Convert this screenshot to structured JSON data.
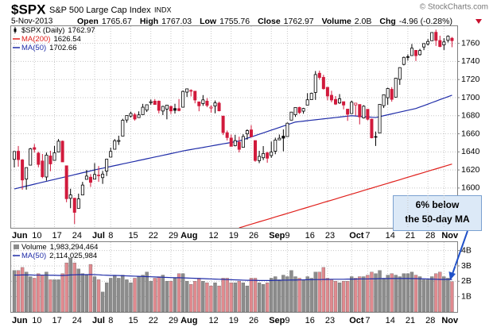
{
  "chart_data": {
    "type": "candlestick",
    "title": "$SPX",
    "subtitle": "S&P 500 Large Cap Index",
    "exchange": "INDX",
    "date": "5-Nov-2013",
    "credit": "© StockCharts.com",
    "quote_labels": [
      "Open",
      "High",
      "Low",
      "Close",
      "Volume",
      "Chg"
    ],
    "volume_text": "2.0B",
    "change": "-4.96 (-0.28%)",
    "price_name": "$SPX (Daily)",
    "annotation": [
      "6% below",
      "the 50-day MA"
    ],
    "up_color": "#000000",
    "down_color": "#d11a3c",
    "grid": true,
    "categories": [
      "Jun",
      null,
      null,
      null,
      null,
      "10",
      null,
      null,
      null,
      null,
      "17",
      null,
      null,
      null,
      null,
      "24",
      null,
      null,
      null,
      null,
      "Jul",
      null,
      null,
      null,
      "8",
      null,
      null,
      null,
      null,
      "15",
      null,
      null,
      null,
      null,
      "22",
      null,
      null,
      null,
      null,
      "29",
      null,
      null,
      "Aug",
      null,
      null,
      null,
      null,
      null,
      null,
      "12",
      null,
      null,
      null,
      null,
      "19",
      null,
      null,
      null,
      null,
      "26",
      null,
      null,
      null,
      null,
      "Sep",
      null,
      null,
      null,
      "9",
      null,
      null,
      null,
      null,
      "16",
      null,
      null,
      null,
      null,
      "23",
      null,
      null,
      null,
      null,
      null,
      "Oct",
      null,
      null,
      null,
      "7",
      null,
      null,
      null,
      null,
      "14",
      null,
      null,
      null,
      null,
      "21",
      null,
      null,
      null,
      null,
      "28",
      null,
      null,
      null,
      "Nov",
      null,
      null
    ],
    "open": [
      1631.7,
      1640.7,
      1631.1,
      1609.9,
      1625.3,
      1644.7,
      1638.6,
      1629.9,
      1612.2,
      1635.5,
      1630.6,
      1639.8,
      1651.8,
      1624.6,
      1588.6,
      1588.8,
      1577.5,
      1592.3,
      1609.6,
      1612.0,
      1609.8,
      1614.3,
      1611.5,
      1618.7,
      1634.2,
      1642.9,
      1651.6,
      1657.4,
      1675.3,
      1679.6,
      1681.0,
      1677.9,
      1681.1,
      1686.2,
      1694.4,
      1696.1,
      1696.1,
      1685.2,
      1687.3,
      1690.3,
      1687.9,
      1687.8,
      1689.4,
      1706.1,
      1708.0,
      1707.1,
      1695.3,
      1693.4,
      1696.1,
      1688.4,
      1690.7,
      1693.9,
      1679.6,
      1661.2,
      1655.3,
      1646.8,
      1650.7,
      1645.0,
      1659.9,
      1664.3,
      1652.5,
      1630.3,
      1633.5,
      1638.9,
      1635.9,
      1640.7,
      1653.3,
      1657.4,
      1656.9,
      1675.1,
      1681.0,
      1689.2,
      1685.0,
      1691.7,
      1697.7,
      1705.7,
      1727.0,
      1722.4,
      1711.4,
      1702.6,
      1698.0,
      1694.1,
      1695.5,
      1687.3,
      1682.4,
      1691.9,
      1692.4,
      1677.5,
      1687.1,
      1676.2,
      1656.9,
      1660.9,
      1691.1,
      1699.9,
      1709.2,
      1700.5,
      1720.2,
      1736.7,
      1745.2,
      1746.5,
      1752.3,
      1747.5,
      1756.0,
      1759.4,
      1762.9,
      1772.3,
      1763.2,
      1758.3,
      1763.4,
      1765.67
    ],
    "high": [
      1640.4,
      1646.5,
      1632.0,
      1622.6,
      1644.4,
      1648.7,
      1640.1,
      1637.7,
      1639.3,
      1641.2,
      1646.5,
      1654.2,
      1652.5,
      1624.6,
      1599.2,
      1588.8,
      1593.8,
      1606.8,
      1620.1,
      1615.4,
      1627.5,
      1624.3,
      1618.9,
      1632.1,
      1644.7,
      1654.2,
      1657.9,
      1676.6,
      1680.2,
      1684.5,
      1683.0,
      1684.8,
      1693.1,
      1692.1,
      1698.0,
      1698.4,
      1696.8,
      1690.9,
      1691.9,
      1690.9,
      1693.2,
      1698.4,
      1707.8,
      1709.7,
      1709.2,
      1707.1,
      1695.3,
      1702.8,
      1699.4,
      1691.5,
      1696.8,
      1695.5,
      1679.6,
      1663.6,
      1659.2,
      1658.9,
      1656.8,
      1659.6,
      1664.9,
      1669.5,
      1652.5,
      1641.2,
      1646.4,
      1640.1,
      1651.4,
      1655.7,
      1659.2,
      1664.8,
      1672.4,
      1684.1,
      1689.1,
      1689.9,
      1688.7,
      1704.9,
      1705.5,
      1729.4,
      1729.9,
      1725.2,
      1711.4,
      1707.6,
      1701.7,
      1703.9,
      1695.5,
      1687.3,
      1696.6,
      1693.9,
      1692.4,
      1691.6,
      1687.1,
      1676.8,
      1662.5,
      1692.6,
      1703.4,
      1711.0,
      1711.6,
      1721.8,
      1733.4,
      1745.3,
      1747.8,
      1759.3,
      1752.3,
      1753.9,
      1759.8,
      1764.8,
      1772.1,
      1775.2,
      1768.5,
      1765.7,
      1768.8,
      1767.03
    ],
    "low": [
      1622.7,
      1623.6,
      1598.2,
      1598.2,
      1625.3,
      1639.3,
      1622.9,
      1610.9,
      1608.1,
      1618.6,
      1630.3,
      1639.8,
      1628.9,
      1584.3,
      1577.7,
      1560.3,
      1577.5,
      1592.3,
      1609.6,
      1601.2,
      1609.8,
      1606.8,
      1604.6,
      1613.3,
      1634.2,
      1642.9,
      1647.7,
      1657.4,
      1672.3,
      1677.9,
      1674.6,
      1677.9,
      1681.1,
      1684.1,
      1692.1,
      1692.4,
      1682.6,
      1680.7,
      1676.0,
      1681.9,
      1682.4,
      1684.9,
      1689.4,
      1700.7,
      1701.3,
      1693.7,
      1684.9,
      1690.9,
      1689.4,
      1683.4,
      1682.6,
      1684.8,
      1658.6,
      1652.6,
      1646.1,
      1646.1,
      1639.4,
      1645.0,
      1653.4,
      1656.0,
      1629.1,
      1627.5,
      1630.9,
      1628.0,
      1633.4,
      1637.4,
      1653.1,
      1640.6,
      1656.9,
      1675.1,
      1678.7,
      1681.9,
      1682.2,
      1691.7,
      1697.7,
      1697.5,
      1719.9,
      1708.9,
      1697.1,
      1694.9,
      1691.9,
      1693.1,
      1687.0,
      1674.3,
      1682.1,
      1680.3,
      1670.4,
      1676.9,
      1674.7,
      1655.0,
      1646.5,
      1660.9,
      1688.5,
      1692.1,
      1695.5,
      1700.5,
      1714.1,
      1735.7,
      1740.9,
      1746.5,
      1740.5,
      1746.5,
      1752.5,
      1757.7,
      1762.9,
      1757.2,
      1755.7,
      1752.7,
      1761.0,
      1755.76
    ],
    "close": [
      1640.4,
      1631.4,
      1608.9,
      1622.6,
      1643.4,
      1642.8,
      1626.1,
      1612.5,
      1636.4,
      1626.7,
      1639.0,
      1651.8,
      1628.9,
      1588.2,
      1592.4,
      1573.1,
      1588.0,
      1603.3,
      1613.2,
      1606.3,
      1615.0,
      1614.1,
      1615.4,
      1631.9,
      1640.5,
      1652.3,
      1652.6,
      1675.0,
      1680.2,
      1682.5,
      1676.3,
      1680.9,
      1689.4,
      1692.1,
      1695.5,
      1692.4,
      1685.9,
      1690.3,
      1691.7,
      1685.3,
      1686.0,
      1685.7,
      1706.9,
      1709.7,
      1707.1,
      1697.4,
      1690.9,
      1697.5,
      1691.4,
      1689.5,
      1694.2,
      1685.4,
      1661.3,
      1655.8,
      1646.1,
      1652.4,
      1642.8,
      1657.0,
      1663.5,
      1656.8,
      1630.5,
      1635.0,
      1638.2,
      1633.0,
      1639.8,
      1653.1,
      1655.1,
      1655.2,
      1671.7,
      1684.0,
      1689.1,
      1683.4,
      1688.0,
      1697.6,
      1704.8,
      1725.5,
      1722.3,
      1709.9,
      1701.8,
      1697.4,
      1692.8,
      1698.7,
      1691.8,
      1681.6,
      1695.0,
      1693.9,
      1678.7,
      1690.5,
      1676.1,
      1655.5,
      1656.4,
      1692.6,
      1703.2,
      1710.1,
      1698.1,
      1721.5,
      1733.2,
      1744.5,
      1744.7,
      1754.7,
      1746.4,
      1752.1,
      1759.8,
      1762.1,
      1772.0,
      1763.3,
      1756.5,
      1761.6,
      1767.9,
      1762.97
    ],
    "series": [
      {
        "name": "MA(200)",
        "color": "#e0201c",
        "values": [
          null,
          null,
          null,
          null,
          null,
          null,
          null,
          null,
          null,
          null,
          null,
          null,
          null,
          null,
          null,
          null,
          null,
          null,
          null,
          null,
          null,
          null,
          null,
          null,
          null,
          null,
          null,
          null,
          null,
          null,
          null,
          null,
          null,
          null,
          null,
          null,
          null,
          null,
          null,
          null,
          null,
          null,
          null,
          null,
          null,
          null,
          null,
          null,
          null,
          null,
          null,
          null,
          null,
          null,
          null,
          null,
          1556.0,
          1557.3,
          1558.7,
          1560.0,
          1561.3,
          1562.7,
          1564.0,
          1565.3,
          1566.6,
          1568.0,
          1569.3,
          1570.6,
          1572.0,
          1573.3,
          1574.6,
          1576.0,
          1577.3,
          1578.6,
          1580.0,
          1581.3,
          1582.6,
          1584.0,
          1585.3,
          1586.6,
          1587.9,
          1589.3,
          1590.6,
          1591.9,
          1593.3,
          1594.6,
          1595.9,
          1597.3,
          1598.6,
          1599.9,
          1601.3,
          1602.6,
          1603.9,
          1605.2,
          1606.6,
          1607.9,
          1609.2,
          1610.6,
          1611.9,
          1613.2,
          1614.6,
          1615.9,
          1617.2,
          1618.6,
          1619.9,
          1621.2,
          1622.5,
          1623.9,
          1625.2,
          1626.54
        ]
      },
      {
        "name": "MA(50)",
        "color": "#1f2ca8",
        "values": [
          1599.0,
          1600.1,
          1601.1,
          1602.2,
          1603.2,
          1604.3,
          1605.3,
          1606.4,
          1607.4,
          1608.5,
          1609.5,
          1610.6,
          1611.6,
          1612.7,
          1613.7,
          1614.8,
          1615.8,
          1616.9,
          1617.9,
          1619.0,
          1620.0,
          1621.0,
          1621.9,
          1622.9,
          1623.8,
          1624.8,
          1625.7,
          1626.7,
          1627.6,
          1628.6,
          1629.5,
          1630.5,
          1631.4,
          1632.4,
          1633.3,
          1634.3,
          1635.2,
          1636.2,
          1637.1,
          1638.1,
          1639.0,
          1640.0,
          1641.0,
          1641.8,
          1642.6,
          1643.4,
          1644.1,
          1644.9,
          1645.7,
          1646.5,
          1647.3,
          1648.1,
          1648.9,
          1649.6,
          1650.4,
          1651.2,
          1652.0,
          1653.5,
          1655.0,
          1656.5,
          1658.0,
          1659.5,
          1661.0,
          1662.5,
          1664.0,
          1665.5,
          1667.0,
          1668.5,
          1670.0,
          1671.5,
          1673.0,
          1673.5,
          1674.0,
          1674.5,
          1675.0,
          1675.5,
          1676.0,
          1676.5,
          1677.0,
          1677.5,
          1678.0,
          1678.5,
          1679.0,
          1679.5,
          1680.0,
          1679.7,
          1679.3,
          1679.0,
          1678.7,
          1678.3,
          1678.0,
          1679.0,
          1680.0,
          1681.0,
          1682.0,
          1683.0,
          1684.0,
          1685.0,
          1686.0,
          1687.0,
          1688.0,
          1689.6,
          1691.2,
          1692.8,
          1694.5,
          1696.1,
          1697.8,
          1699.4,
          1701.0,
          1702.66
        ]
      }
    ],
    "ylim": [
      1556,
      1779
    ],
    "yticks": [
      1600,
      1620,
      1640,
      1660,
      1680,
      1700,
      1720,
      1740,
      1760
    ],
    "volume": {
      "name": "Volume",
      "legend_label": "1,983,294,464",
      "up_color": "#8c8c8c",
      "down_color": "#e08a8f",
      "values": [
        2.7,
        2.7,
        2.9,
        2.6,
        2.3,
        2.2,
        2.5,
        2.4,
        2.6,
        2.1,
        2.1,
        2.1,
        2.5,
        3.2,
        3.5,
        3.2,
        2.8,
        2.5,
        2.4,
        3.1,
        2.3,
        2.1,
        1.3,
        1.9,
        2.2,
        2.4,
        2.2,
        2.4,
        2.1,
        1.9,
        2.2,
        2.3,
        2.4,
        2.6,
        2.0,
        2.2,
        2.3,
        2.4,
        2.0,
        2.0,
        2.2,
        2.5,
        2.5,
        2.0,
        1.8,
        2.0,
        2.2,
        2.0,
        1.9,
        1.7,
        1.9,
        1.7,
        2.2,
        2.2,
        1.9,
        1.9,
        2.0,
        1.9,
        1.7,
        2.2,
        2.2,
        1.9,
        1.8,
        1.9,
        2.2,
        2.3,
        2.1,
        2.4,
        2.3,
        2.7,
        2.3,
        2.2,
        2.1,
        2.3,
        2.2,
        2.6,
        2.6,
        2.9,
        2.2,
        2.1,
        2.0,
        1.9,
        2.0,
        2.0,
        2.3,
        2.2,
        2.3,
        2.3,
        2.4,
        2.6,
        2.5,
        2.7,
        2.2,
        2.4,
        2.5,
        2.4,
        2.3,
        2.5,
        2.5,
        2.6,
        2.4,
        2.3,
        2.1,
        2.1,
        2.3,
        2.5,
        2.6,
        2.3,
        2.2,
        1.983294464
      ],
      "ma": {
        "name": "MA(50)",
        "color": "#1f2ca8",
        "legend_label": "2,114,025,984",
        "values": [
          2.4,
          2.4,
          2.41,
          2.41,
          2.41,
          2.4,
          2.4,
          2.4,
          2.4,
          2.39,
          2.39,
          2.38,
          2.38,
          2.39,
          2.41,
          2.42,
          2.43,
          2.43,
          2.43,
          2.44,
          2.43,
          2.42,
          2.4,
          2.39,
          2.38,
          2.38,
          2.37,
          2.36,
          2.35,
          2.34,
          2.33,
          2.32,
          2.31,
          2.3,
          2.29,
          2.28,
          2.27,
          2.26,
          2.25,
          2.24,
          2.23,
          2.23,
          2.22,
          2.21,
          2.2,
          2.19,
          2.18,
          2.17,
          2.16,
          2.15,
          2.14,
          2.13,
          2.12,
          2.11,
          2.1,
          2.09,
          2.08,
          2.07,
          2.06,
          2.06,
          2.06,
          2.05,
          2.05,
          2.05,
          2.05,
          2.06,
          2.06,
          2.07,
          2.07,
          2.08,
          2.08,
          2.09,
          2.09,
          2.1,
          2.1,
          2.11,
          2.11,
          2.12,
          2.12,
          2.13,
          2.13,
          2.13,
          2.13,
          2.14,
          2.14,
          2.14,
          2.15,
          2.15,
          2.15,
          2.16,
          2.16,
          2.17,
          2.17,
          2.17,
          2.18,
          2.18,
          2.18,
          2.18,
          2.18,
          2.17,
          2.17,
          2.16,
          2.16,
          2.15,
          2.14,
          2.13,
          2.12,
          2.12,
          2.12,
          2.114025984
        ]
      },
      "ylim": [
        0,
        4.55
      ],
      "yticks": [
        {
          "value": 1,
          "label": "1B"
        },
        {
          "value": 2,
          "label": "2B"
        },
        {
          "value": 3,
          "label": "3B"
        },
        {
          "value": 4,
          "label": "4B"
        }
      ]
    }
  }
}
